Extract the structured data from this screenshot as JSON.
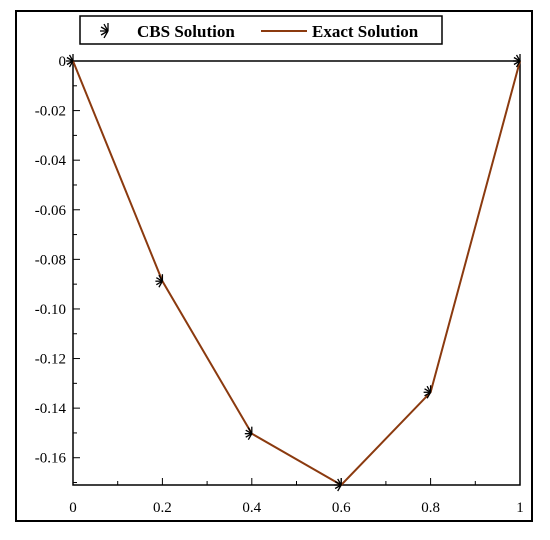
{
  "chart_data": {
    "type": "line",
    "x": [
      0,
      0.2,
      0.4,
      0.6,
      0.8,
      1
    ],
    "xlim": [
      0,
      1
    ],
    "ylim": [
      -0.171,
      0
    ],
    "x_ticks": [
      0,
      0.2,
      0.4,
      0.6,
      0.8,
      1
    ],
    "x_tick_labels": [
      "0",
      "0.2",
      "0.4",
      "0.6",
      "0.8",
      "1"
    ],
    "y_ticks": [
      0,
      -0.02,
      -0.04,
      -0.06,
      -0.08,
      -0.1,
      -0.12,
      -0.14,
      -0.16
    ],
    "y_tick_labels": [
      "0",
      "-0.02",
      "-0.04",
      "-0.06",
      "-0.08",
      "-0.10",
      "-0.12",
      "-0.14",
      "-0.16"
    ],
    "grid": false,
    "legend_position": "top",
    "series": [
      {
        "name": "CBS Solution",
        "style": "markers",
        "marker": "star",
        "color": "#000000",
        "values": [
          0,
          -0.0888,
          -0.1503,
          -0.171,
          -0.1336,
          0
        ]
      },
      {
        "name": "Exact Solution",
        "style": "line",
        "color": "#8B3A0F",
        "values": [
          0,
          -0.0888,
          -0.1503,
          -0.171,
          -0.1336,
          0
        ]
      }
    ]
  }
}
